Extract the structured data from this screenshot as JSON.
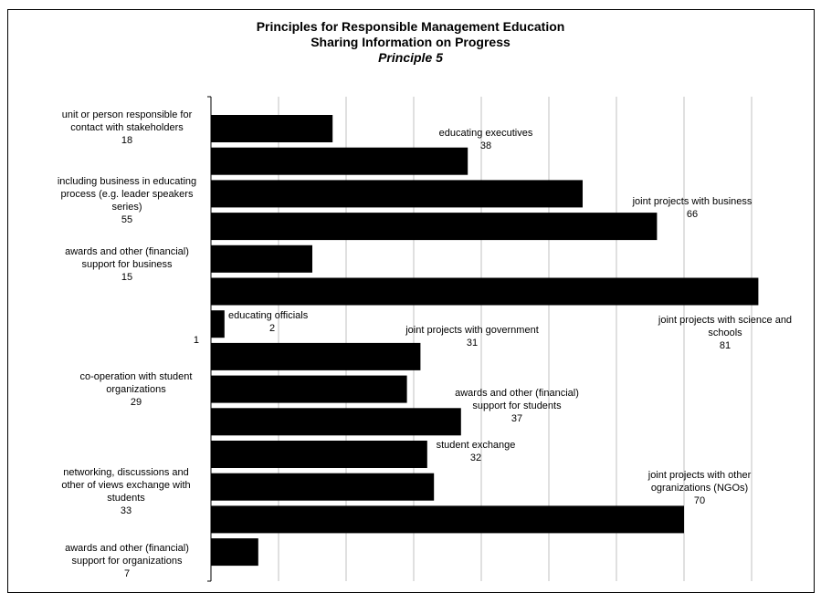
{
  "chart_data": {
    "type": "bar",
    "orientation": "horizontal",
    "title": "Principles for Responsible Management Education",
    "subtitle": "Sharing Information on Progress",
    "subtitle2": "Principle 5",
    "xlim": [
      0,
      90
    ],
    "grid": true,
    "categories": [
      "unit or person responsible for contact with stakeholders",
      "educating executives",
      "including business in educating process (e.g. leader speakers series)",
      "joint projects with business",
      "awards and other (financial) support for business",
      "joint projects with science and schools",
      "educating officials",
      "joint projects with government",
      "co-operation with student organizations",
      "awards and other (financial) support for students",
      "student exchange",
      "networking, discussions and other of views exchange with students",
      "joint projects with other ogranizations (NGOs)",
      "awards and other (financial) support for organizations"
    ],
    "values": [
      18,
      38,
      55,
      66,
      15,
      81,
      2,
      31,
      29,
      37,
      32,
      33,
      70,
      7
    ],
    "labels": [
      [
        "unit or person responsible for",
        "contact with stakeholders",
        "18"
      ],
      [
        "educating executives",
        "38"
      ],
      [
        "including business in educating",
        "process (e.g. leader speakers",
        "series)",
        "55"
      ],
      [
        "joint projects with business",
        "66"
      ],
      [
        "awards and other (financial)",
        "support for business",
        "15"
      ],
      [
        "joint projects with science and",
        "schools",
        "81"
      ],
      [
        "educating officials",
        "2"
      ],
      [
        "joint projects with government",
        "31"
      ],
      [
        "co-operation with student",
        "organizations",
        "29"
      ],
      [
        "awards and other (financial)",
        "support for students",
        "37"
      ],
      [
        "student exchange",
        "32"
      ],
      [
        "networking, discussions and",
        "other of views exchange with",
        "students",
        "33"
      ],
      [
        "joint projects with other",
        "ogranizations (NGOs)",
        "70"
      ],
      [
        "awards and other (financial)",
        "support for organizations",
        "7"
      ]
    ],
    "axis_tick_label": "1",
    "bar_color": "#000000",
    "grid_color": "#c0c0c0"
  }
}
